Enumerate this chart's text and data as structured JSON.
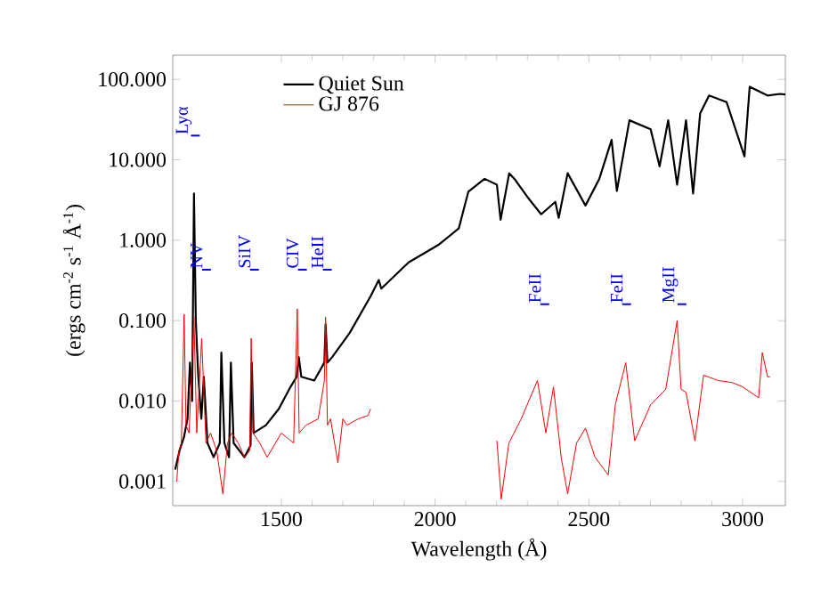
{
  "chart_data": {
    "type": "line",
    "xlabel": "Wavelength (Å)",
    "ylabel": "(ergs cm$^{-2}$ s$^{-1}$ Å$^{-1}$)",
    "log": "y",
    "legend": "top left",
    "xlim": [
      1147,
      3139
    ],
    "ylim": [
      0.0005,
      200
    ],
    "xticks": [
      1500,
      2000,
      2500,
      3000
    ],
    "yticks": [
      {
        "value": 0.001,
        "label": "0.001"
      },
      {
        "value": 0.01,
        "label": "0.010"
      },
      {
        "value": 0.1,
        "label": "0.100"
      },
      {
        "value": 1,
        "label": "1.000"
      },
      {
        "value": 10,
        "label": "10.000"
      },
      {
        "value": 100,
        "label": "100.000"
      }
    ],
    "series": [
      {
        "name": "Quiet Sun",
        "color": "#000000",
        "x": [
          1155,
          1170,
          1183,
          1195,
          1203,
          1210,
          1216,
          1222,
          1230,
          1240,
          1248,
          1260,
          1280,
          1300,
          1305,
          1315,
          1330,
          1336,
          1345,
          1380,
          1400,
          1404,
          1410,
          1450,
          1492,
          1530,
          1550,
          1557,
          1565,
          1607,
          1640,
          1644,
          1650,
          1665,
          1722,
          1790,
          1817,
          1825,
          1914,
          2010,
          2077,
          2108,
          2161,
          2201,
          2213,
          2241,
          2258,
          2299,
          2345,
          2391,
          2402,
          2431,
          2489,
          2534,
          2574,
          2591,
          2632,
          2701,
          2730,
          2758,
          2787,
          2816,
          2839,
          2862,
          2891,
          2948,
          3006,
          3023,
          3081,
          3121,
          3139
        ],
        "values": [
          0.0014,
          0.0025,
          0.0035,
          0.006,
          0.03,
          0.01,
          3.8,
          0.1,
          0.02,
          0.006,
          0.02,
          0.003,
          0.002,
          0.003,
          0.04,
          0.003,
          0.002,
          0.03,
          0.003,
          0.002,
          0.0028,
          0.03,
          0.004,
          0.005,
          0.008,
          0.015,
          0.02,
          0.035,
          0.02,
          0.018,
          0.03,
          0.09,
          0.03,
          0.035,
          0.07,
          0.2,
          0.32,
          0.25,
          0.53,
          0.87,
          1.4,
          4,
          5.8,
          4.9,
          1.8,
          6.8,
          5.8,
          3.5,
          2.1,
          3,
          1.9,
          6.8,
          2.7,
          5.8,
          17.7,
          4.1,
          31,
          24,
          8.3,
          31,
          4.9,
          31,
          3.8,
          38,
          63,
          52,
          11,
          81,
          63,
          66,
          65
        ]
      },
      {
        "name": "GJ 876",
        "color": "#ff0000",
        "x": [
          1160,
          1167,
          1175,
          1184,
          1190,
          1200,
          1216,
          1225,
          1241,
          1255,
          1270,
          1290,
          1310,
          1325,
          1339,
          1360,
          1380,
          1397,
          1402,
          1408,
          1430,
          1454,
          1500,
          1540,
          1552,
          1558,
          1580,
          1620,
          1640,
          1644,
          1650,
          1660,
          1684,
          1700,
          1713,
          1750,
          1782,
          1790,
          1990,
          2201,
          2215,
          2240,
          2280,
          2333,
          2360,
          2385,
          2410,
          2431,
          2460,
          2489,
          2520,
          2563,
          2586,
          2620,
          2649,
          2701,
          2750,
          2787,
          2800,
          2816,
          2845,
          2873,
          2920,
          2966,
          3000,
          3052,
          3064,
          3081,
          3089
        ],
        "values": [
          0.001,
          0.0024,
          0.003,
          0.12,
          0.005,
          0.004,
          0.11,
          0.004,
          0.06,
          0.003,
          0.004,
          0.0024,
          0.0007,
          0.003,
          0.004,
          0.003,
          0.002,
          0.0024,
          0.06,
          0.004,
          0.003,
          0.002,
          0.004,
          0.003,
          0.14,
          0.004,
          0.005,
          0.006,
          0.018,
          0.11,
          0.005,
          0.006,
          0.0017,
          0.006,
          0.005,
          0.006,
          0.0066,
          0.008,
          null,
          0.0032,
          0.0006,
          0.003,
          0.006,
          0.018,
          0.004,
          0.015,
          0.002,
          0.0007,
          0.003,
          0.0046,
          0.002,
          0.0012,
          0.009,
          0.03,
          0.0032,
          0.009,
          0.014,
          0.1,
          0.014,
          0.0128,
          0.0032,
          0.021,
          0.018,
          0.017,
          0.015,
          0.011,
          0.04,
          0.02,
          0.02
        ]
      }
    ],
    "annotations": [
      "Lyα",
      "NV",
      "SiIV",
      "CIV",
      "HeII",
      "FeII",
      "FeII",
      "MgII"
    ]
  }
}
